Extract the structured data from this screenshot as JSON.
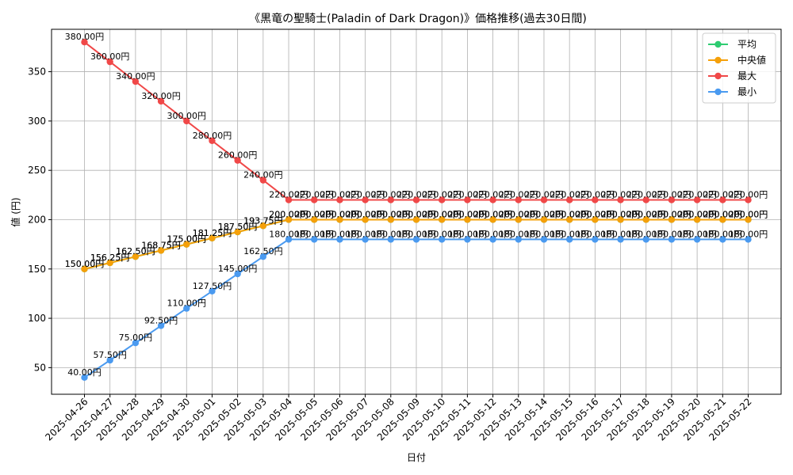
{
  "chart_data": {
    "type": "line",
    "title": "《黒竜の聖騎士(Paladin of Dark Dragon)》価格推移(過去30日間)",
    "xlabel": "日付",
    "ylabel": "値 (円)",
    "ylim": [
      23,
      393
    ],
    "yticks": [
      50,
      100,
      150,
      200,
      250,
      300,
      350
    ],
    "grid": true,
    "legend_position": "top-right",
    "label_suffix": "円",
    "categories": [
      "2025-04-26",
      "2025-04-27",
      "2025-04-28",
      "2025-04-29",
      "2025-04-30",
      "2025-05-01",
      "2025-05-02",
      "2025-05-03",
      "2025-05-04",
      "2025-05-05",
      "2025-05-06",
      "2025-05-07",
      "2025-05-08",
      "2025-05-09",
      "2025-05-10",
      "2025-05-11",
      "2025-05-12",
      "2025-05-13",
      "2025-05-14",
      "2025-05-15",
      "2025-05-16",
      "2025-05-17",
      "2025-05-18",
      "2025-05-19",
      "2025-05-20",
      "2025-05-21",
      "2025-05-22"
    ],
    "series": [
      {
        "name": "平均",
        "color": "#2ecc71",
        "values": [
          150,
          156.25,
          162.5,
          168.75,
          175,
          181.25,
          187.5,
          193.75,
          200,
          200,
          200,
          200,
          200,
          200,
          200,
          200,
          200,
          200,
          200,
          200,
          200,
          200,
          200,
          200,
          200,
          200,
          200
        ]
      },
      {
        "name": "中央値",
        "color": "#f5a00a",
        "values": [
          150,
          156.25,
          162.5,
          168.75,
          175,
          181.25,
          187.5,
          193.75,
          200,
          200,
          200,
          200,
          200,
          200,
          200,
          200,
          200,
          200,
          200,
          200,
          200,
          200,
          200,
          200,
          200,
          200,
          200
        ]
      },
      {
        "name": "最大",
        "color": "#f04848",
        "values": [
          380,
          360,
          340,
          320,
          300,
          280,
          260,
          240,
          220,
          220,
          220,
          220,
          220,
          220,
          220,
          220,
          220,
          220,
          220,
          220,
          220,
          220,
          220,
          220,
          220,
          220,
          220
        ]
      },
      {
        "name": "最小",
        "color": "#4a9af0",
        "values": [
          40,
          57.5,
          75,
          92.5,
          110,
          127.5,
          145,
          162.5,
          180,
          180,
          180,
          180,
          180,
          180,
          180,
          180,
          180,
          180,
          180,
          180,
          180,
          180,
          180,
          180,
          180,
          180,
          180
        ]
      }
    ]
  }
}
